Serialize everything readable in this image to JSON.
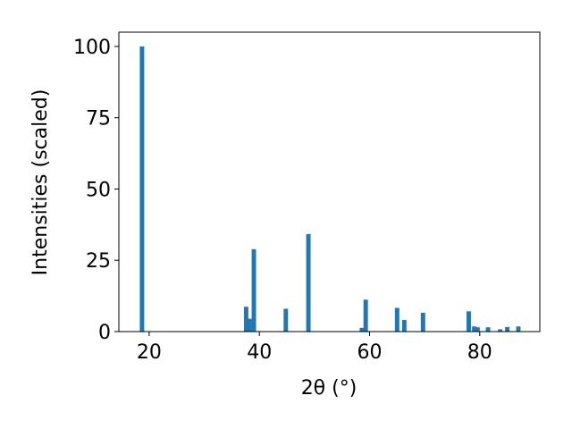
{
  "chart_data": {
    "type": "bar",
    "xlabel": "2θ (°)",
    "ylabel": "Intensities (scaled)",
    "x": [
      18.7,
      37.6,
      38.2,
      39.0,
      44.8,
      48.9,
      58.6,
      59.3,
      65.0,
      66.3,
      69.7,
      78.0,
      79.0,
      79.6,
      81.5,
      83.7,
      85.0,
      87.0
    ],
    "values": [
      100,
      8.7,
      4.5,
      28.9,
      8,
      34.2,
      1.3,
      11.2,
      8.3,
      4.1,
      6.6,
      7.1,
      1.8,
      1.5,
      1.5,
      0.8,
      1.6,
      1.8
    ],
    "color": "#1f77b4",
    "xlim": [
      14.5,
      90.9
    ],
    "xticks": [
      20,
      40,
      60,
      80
    ],
    "ylim": [
      0,
      105
    ],
    "yticks": [
      0,
      25,
      50,
      75,
      100
    ]
  }
}
